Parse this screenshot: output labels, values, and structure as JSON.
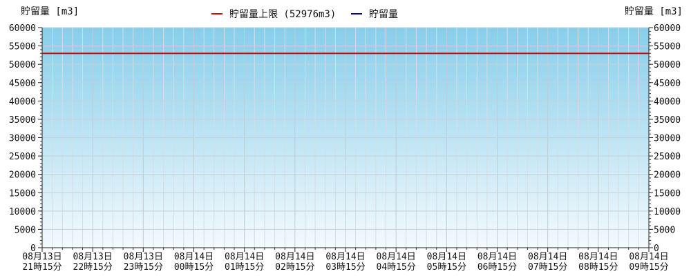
{
  "chart_data": {
    "type": "line",
    "title": "",
    "ylabel_left": "貯留量 [m3]",
    "ylabel_right": "貯留量 [m3]",
    "ylim": [
      0,
      60000
    ],
    "y_ticks": [
      0,
      5000,
      10000,
      15000,
      20000,
      25000,
      30000,
      35000,
      40000,
      45000,
      50000,
      55000,
      60000
    ],
    "x_ticks": [
      {
        "date": "08月13日",
        "time": "21時15分"
      },
      {
        "date": "08月13日",
        "time": "22時15分"
      },
      {
        "date": "08月13日",
        "time": "23時15分"
      },
      {
        "date": "08月14日",
        "time": "00時15分"
      },
      {
        "date": "08月14日",
        "time": "01時15分"
      },
      {
        "date": "08月14日",
        "time": "02時15分"
      },
      {
        "date": "08月14日",
        "time": "03時15分"
      },
      {
        "date": "08月14日",
        "time": "04時15分"
      },
      {
        "date": "08月14日",
        "time": "05時15分"
      },
      {
        "date": "08月14日",
        "time": "06時15分"
      },
      {
        "date": "08月14日",
        "time": "07時15分"
      },
      {
        "date": "08月14日",
        "time": "08時15分"
      },
      {
        "date": "08月14日",
        "time": "09時15分"
      }
    ],
    "grid": true,
    "legend_position": "top-center",
    "series": [
      {
        "name": "貯留量上限 (52976m3)",
        "color": "#dd0000",
        "values": [
          52976,
          52976
        ]
      },
      {
        "name": "貯留量",
        "color": "#000099",
        "values": []
      }
    ],
    "background_gradient": {
      "top": "#87ceeb",
      "bottom": "#f4fafd"
    }
  }
}
